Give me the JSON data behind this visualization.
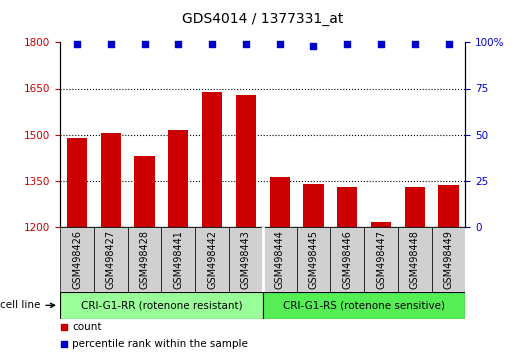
{
  "title": "GDS4014 / 1377331_at",
  "categories": [
    "GSM498426",
    "GSM498427",
    "GSM498428",
    "GSM498441",
    "GSM498442",
    "GSM498443",
    "GSM498444",
    "GSM498445",
    "GSM498446",
    "GSM498447",
    "GSM498448",
    "GSM498449"
  ],
  "bar_values": [
    1490,
    1505,
    1430,
    1515,
    1640,
    1630,
    1360,
    1340,
    1330,
    1215,
    1330,
    1335
  ],
  "percentile_values": [
    99,
    99,
    99,
    99,
    99,
    99,
    99,
    98,
    99,
    99,
    99,
    99
  ],
  "bar_color": "#cc0000",
  "dot_color": "#0000cc",
  "ylim_left": [
    1200,
    1800
  ],
  "ylim_right": [
    0,
    100
  ],
  "yticks_left": [
    1200,
    1350,
    1500,
    1650,
    1800
  ],
  "yticks_right": [
    0,
    25,
    50,
    75,
    100
  ],
  "group1_label": "CRI-G1-RR (rotenone resistant)",
  "group2_label": "CRI-G1-RS (rotenone sensitive)",
  "group_bg1": "#99ff99",
  "group_bg2": "#55ee55",
  "cell_line_label": "cell line",
  "legend_count_label": "count",
  "legend_percentile_label": "percentile rank within the sample",
  "tick_bg_color": "#d0d0d0",
  "title_fontsize": 10,
  "tick_fontsize": 7.5,
  "label_fontsize": 8,
  "bar_width": 0.6,
  "dot_size": 22,
  "group_split": 5.5
}
